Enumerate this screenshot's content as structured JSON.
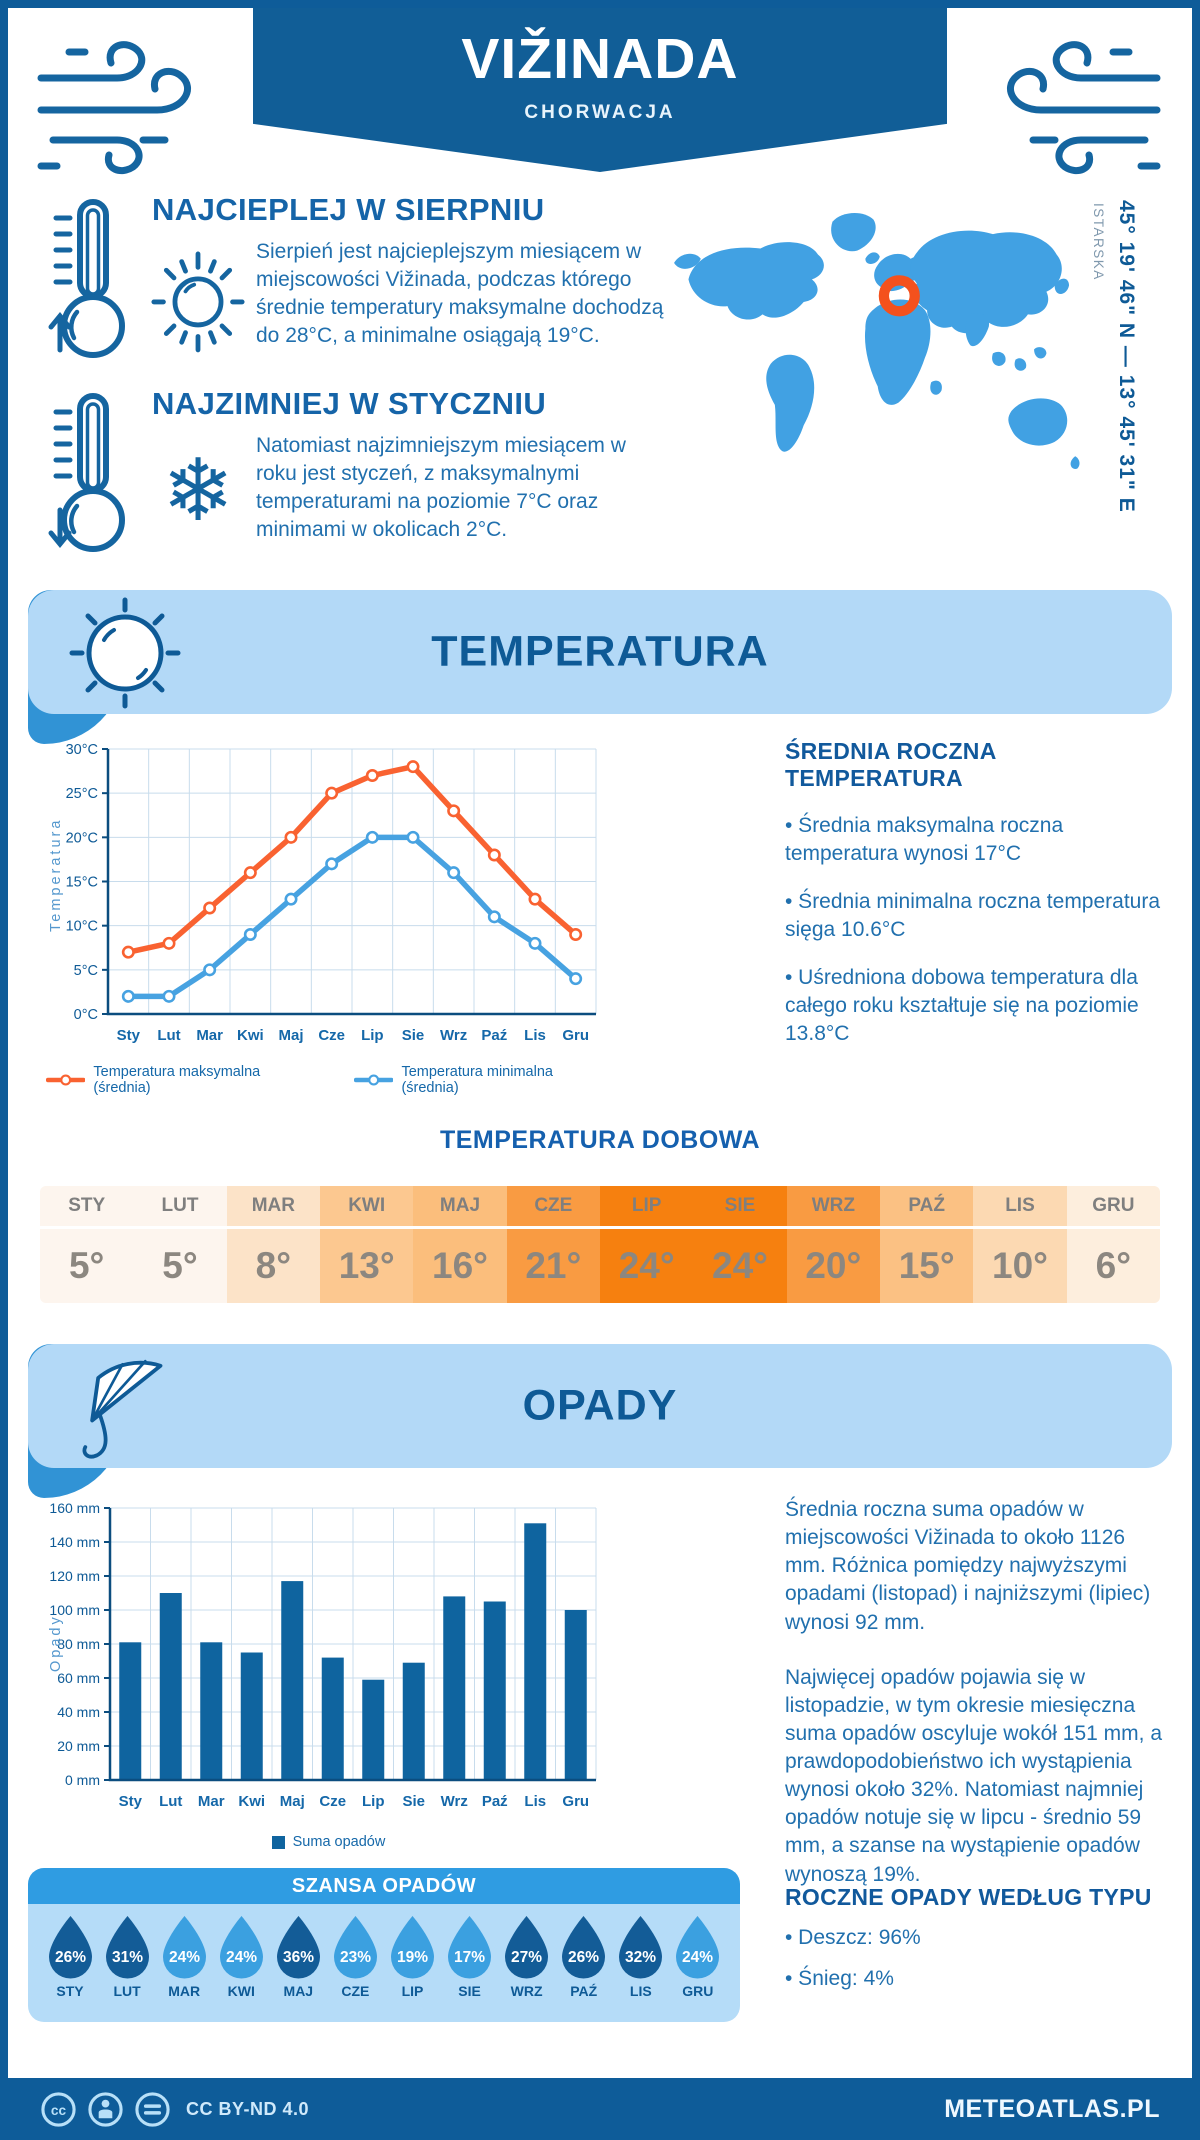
{
  "header": {
    "title": "VIŽINADA",
    "subtitle": "CHORWACJA"
  },
  "geo": {
    "region": "ISTARSKA",
    "coords": "45° 19' 46\" N — 13° 45' 31\" E"
  },
  "warmest": {
    "title": "NAJCIEPLEJ W SIERPNIU",
    "text": "Sierpień jest najcieplejszym miesiącem w miejscowości Vižinada, podczas którego średnie temperatury maksymalne dochodzą do 28°C, a minimalne osiągają 19°C."
  },
  "coldest": {
    "title": "NAJZIMNIEJ W STYCZNIU",
    "text": "Natomiast najzimniejszym miesiącem w roku jest styczeń, z maksymalnymi temperaturami na poziomie 7°C oraz minimami w okolicach 2°C."
  },
  "temperature_section": {
    "banner_title": "TEMPERATURA",
    "summary_title": "ŚREDNIA ROCZNA TEMPERATURA",
    "bullets": [
      "• Średnia maksymalna roczna temperatura wynosi 17°C",
      "• Średnia minimalna roczna temperatura sięga 10.6°C",
      "• Uśredniona dobowa temperatura dla całego roku kształtuje się na poziomie 13.8°C"
    ]
  },
  "chart_data": [
    {
      "type": "line",
      "title": "",
      "x": [
        "Sty",
        "Lut",
        "Mar",
        "Kwi",
        "Maj",
        "Cze",
        "Lip",
        "Sie",
        "Wrz",
        "Paź",
        "Lis",
        "Gru"
      ],
      "ylabel": "Temperatura",
      "ylim": [
        0,
        30
      ],
      "ytick_step": 5,
      "ytick_suffix": "°C",
      "grid": true,
      "legend_position": "bottom",
      "series": [
        {
          "name": "Temperatura maksymalna (średnia)",
          "color": "#f96231",
          "values": [
            7,
            8,
            12,
            16,
            20,
            25,
            27,
            28,
            23,
            18,
            13,
            9
          ]
        },
        {
          "name": "Temperatura minimalna (średnia)",
          "color": "#47a2e1",
          "values": [
            2,
            2,
            5,
            9,
            13,
            17,
            20,
            20,
            16,
            11,
            8,
            4
          ]
        }
      ]
    },
    {
      "type": "bar",
      "title": "",
      "categories": [
        "Sty",
        "Lut",
        "Mar",
        "Kwi",
        "Maj",
        "Cze",
        "Lip",
        "Sie",
        "Wrz",
        "Paź",
        "Lis",
        "Gru"
      ],
      "values": [
        81,
        110,
        81,
        75,
        117,
        72,
        59,
        69,
        108,
        105,
        151,
        100
      ],
      "ylabel": "Opady",
      "ylim": [
        0,
        160
      ],
      "ytick_step": 20,
      "ytick_suffix": " mm",
      "grid": true,
      "color": "#0f649f",
      "legend": "Suma opadów",
      "legend_position": "bottom"
    }
  ],
  "daily_table": {
    "title": "TEMPERATURA DOBOWA",
    "months": [
      "STY",
      "LUT",
      "MAR",
      "KWI",
      "MAJ",
      "CZE",
      "LIP",
      "SIE",
      "WRZ",
      "PAŹ",
      "LIS",
      "GRU"
    ],
    "values": [
      "5°",
      "5°",
      "8°",
      "13°",
      "16°",
      "21°",
      "24°",
      "24°",
      "20°",
      "15°",
      "10°",
      "6°"
    ],
    "cell_colors": [
      "#fdf5ee",
      "#fdf5ee",
      "#fce3c8",
      "#fcc890",
      "#fbbe7c",
      "#f99b42",
      "#f6800f",
      "#f6800f",
      "#f99b42",
      "#fbc183",
      "#fcd9b2",
      "#fdeedd"
    ]
  },
  "precip_section": {
    "banner_title": "OPADY",
    "paragraphs": [
      "Średnia roczna suma opadów w miejscowości Vižinada to około 1126 mm. Różnica pomiędzy najwyższymi opadami (listopad) i najniższymi (lipiec) wynosi 92 mm.",
      "Najwięcej opadów pojawia się w listopadzie, w tym okresie miesięczna suma opadów oscyluje wokół 151 mm, a prawdopodobieństwo ich wystąpienia wynosi około 32%. Natomiast najmniej opadów notuje się w lipcu - średnio 59 mm, a szanse na wystąpienie opadów wynoszą 19%."
    ],
    "type_title": "ROCZNE OPADY WEDŁUG TYPU",
    "type_bullets": [
      "• Deszcz: 96%",
      "• Śnieg: 4%"
    ]
  },
  "rain_chance": {
    "title": "SZANSA OPADÓW",
    "months": [
      "STY",
      "LUT",
      "MAR",
      "KWI",
      "MAJ",
      "CZE",
      "LIP",
      "SIE",
      "WRZ",
      "PAŹ",
      "LIS",
      "GRU"
    ],
    "values_pct": [
      26,
      31,
      24,
      24,
      36,
      23,
      19,
      17,
      27,
      26,
      32,
      24
    ],
    "dark": [
      true,
      true,
      false,
      false,
      true,
      false,
      false,
      false,
      true,
      true,
      true,
      false
    ],
    "drop_dark_color": "#135c97",
    "drop_light_color": "#3ba0e0"
  },
  "footer": {
    "license": "CC BY-ND 4.0",
    "site": "METEOATLAS.PL"
  }
}
